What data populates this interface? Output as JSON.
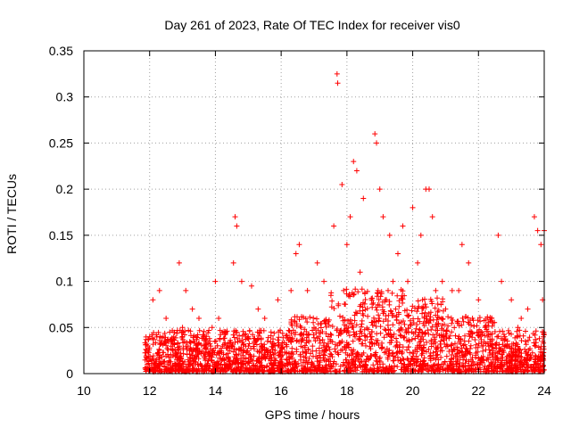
{
  "chart_data": {
    "type": "scatter",
    "title": "Day 261 of 2023, Rate Of TEC Index for receiver vis0",
    "xlabel": "GPS time / hours",
    "ylabel": "ROTI / TECUs",
    "xlim": [
      10,
      24
    ],
    "ylim": [
      0,
      0.35
    ],
    "xticks": [
      "10",
      "12",
      "14",
      "16",
      "18",
      "20",
      "22",
      "24"
    ],
    "yticks": [
      "0",
      "0.05",
      "0.1",
      "0.15",
      "0.2",
      "0.25",
      "0.3",
      "0.35"
    ],
    "grid": true,
    "marker": "+",
    "color": "#ff0000",
    "series": [
      {
        "name": "ROTI",
        "x": [
          11.95,
          12.1,
          12.3,
          12.5,
          12.9,
          13.1,
          13.3,
          13.5,
          13.9,
          14.0,
          14.6,
          14.65,
          14.55,
          14.8,
          15.1,
          15.3,
          15.5,
          15.9,
          16.3,
          16.45,
          16.55,
          16.8,
          17.1,
          17.3,
          17.6,
          17.7,
          17.72,
          17.85,
          18.0,
          18.1,
          18.2,
          18.3,
          18.5,
          18.85,
          18.9,
          19.0,
          19.1,
          19.3,
          19.55,
          19.7,
          19.85,
          20.0,
          20.15,
          20.25,
          20.4,
          20.5,
          20.6,
          20.7,
          20.9,
          21.2,
          21.5,
          21.7,
          22.0,
          22.4,
          22.6,
          22.7,
          23.0,
          23.3,
          23.5,
          23.7,
          23.8,
          23.9,
          24.0,
          12.0,
          13.0,
          14.1,
          15.0,
          16.0,
          17.0,
          17.9,
          18.4,
          19.2,
          19.4,
          20.3,
          21.0,
          21.4,
          22.2,
          22.8,
          23.2,
          23.95
        ],
        "y": [
          0.03,
          0.08,
          0.09,
          0.06,
          0.12,
          0.09,
          0.07,
          0.06,
          0.05,
          0.1,
          0.17,
          0.16,
          0.12,
          0.1,
          0.095,
          0.07,
          0.06,
          0.08,
          0.09,
          0.13,
          0.14,
          0.09,
          0.12,
          0.1,
          0.16,
          0.325,
          0.315,
          0.205,
          0.14,
          0.17,
          0.23,
          0.22,
          0.19,
          0.26,
          0.25,
          0.2,
          0.17,
          0.15,
          0.13,
          0.16,
          0.1,
          0.18,
          0.12,
          0.15,
          0.2,
          0.2,
          0.17,
          0.09,
          0.1,
          0.09,
          0.14,
          0.12,
          0.08,
          0.06,
          0.15,
          0.1,
          0.08,
          0.06,
          0.07,
          0.17,
          0.155,
          0.14,
          0.155,
          0.04,
          0.05,
          0.06,
          0.04,
          0.03,
          0.05,
          0.09,
          0.11,
          0.08,
          0.1,
          0.08,
          0.07,
          0.09,
          0.05,
          0.04,
          0.05,
          0.08
        ]
      }
    ]
  }
}
